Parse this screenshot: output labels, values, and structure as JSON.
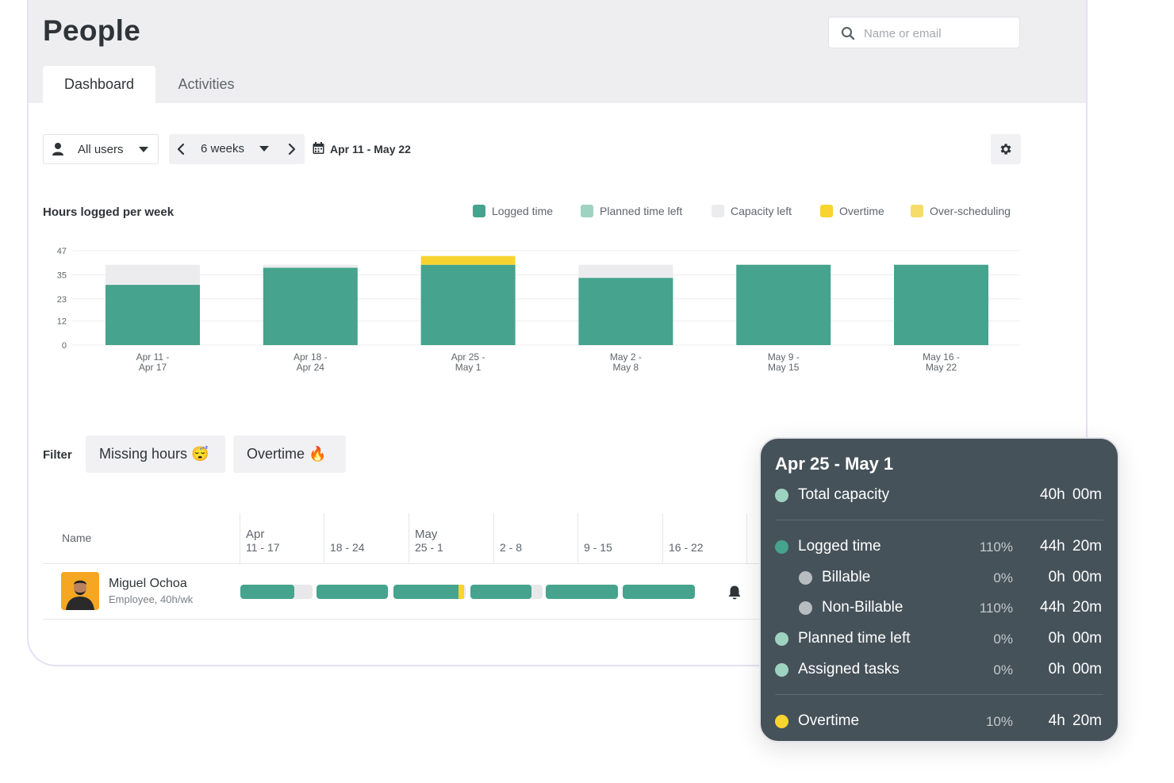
{
  "header": {
    "title": "People",
    "search_placeholder": "Name or email"
  },
  "tabs": [
    {
      "label": "Dashboard",
      "active": true
    },
    {
      "label": "Activities",
      "active": false
    }
  ],
  "toolbar": {
    "users_label": "All users",
    "weeks_label": "6 weeks",
    "date_range": "Apr 11 - May 22"
  },
  "chart": {
    "title": "Hours logged per week",
    "legend": [
      {
        "label": "Logged time",
        "color": "#46a38d"
      },
      {
        "label": "Planned time left",
        "color": "#9fd3c1"
      },
      {
        "label": "Capacity left",
        "color": "#ececef"
      },
      {
        "label": "Overtime",
        "color": "#f7d42f"
      },
      {
        "label": "Over-scheduling",
        "color": "#f6dc6b"
      }
    ]
  },
  "chart_data": {
    "type": "bar",
    "title": "Hours logged per week",
    "categories": [
      [
        "Apr 11 -",
        "Apr 17"
      ],
      [
        "Apr 18 -",
        "Apr 24"
      ],
      [
        "Apr 25 -",
        "May 1"
      ],
      [
        "May 2 -",
        "May 8"
      ],
      [
        "May 9 -",
        "May 15"
      ],
      [
        "May 16 -",
        "May 22"
      ]
    ],
    "y_ticks": [
      "47",
      "35",
      "23",
      "12",
      "0"
    ],
    "ylim": [
      0,
      47
    ],
    "series": [
      {
        "name": "Logged time",
        "values": [
          30,
          38.5,
          40,
          33.5,
          40,
          40
        ]
      },
      {
        "name": "Capacity left",
        "values": [
          10,
          1.5,
          0,
          6.5,
          0,
          0
        ]
      },
      {
        "name": "Overtime",
        "values": [
          0,
          0,
          4.33,
          0,
          0,
          0
        ]
      }
    ],
    "colors": {
      "logged": "#46a38d",
      "capacity": "#ececef",
      "overtime": "#f7d42f",
      "grid": "#ececef",
      "tick": "#5f656b"
    }
  },
  "filter": {
    "label": "Filter",
    "chips": [
      {
        "label": "Missing hours",
        "emoji": "😴"
      },
      {
        "label": "Overtime",
        "emoji": "🔥"
      }
    ]
  },
  "table": {
    "name_header": "Name",
    "columns": [
      {
        "month": "Apr",
        "days": "11 - 17"
      },
      {
        "month": "",
        "days": "18 - 24"
      },
      {
        "month": "May",
        "days": "25 - 1"
      },
      {
        "month": "",
        "days": "2 - 8"
      },
      {
        "month": "",
        "days": "9 - 15"
      },
      {
        "month": "",
        "days": "16 - 22"
      }
    ],
    "rows": [
      {
        "name": "Miguel Ochoa",
        "role": "Employee, 40h/wk",
        "week_fill": [
          0.75,
          1.0,
          0.98,
          0.85,
          1.0,
          1.0
        ],
        "week_overtime": [
          0,
          0,
          0.08,
          0,
          0,
          0
        ]
      }
    ]
  },
  "tooltip": {
    "title": "Apr 25 - May 1",
    "rows": [
      {
        "label": "Total capacity",
        "pct": "",
        "hours": "40h 00m",
        "color": "#9fd3c1",
        "indent": false
      },
      {
        "label": "Logged time",
        "pct": "110%",
        "hours": "44h 20m",
        "color": "#46a38d",
        "indent": false
      },
      {
        "label": "Billable",
        "pct": "0%",
        "hours": "0h 00m",
        "color": "#b7bcc0",
        "indent": true
      },
      {
        "label": "Non-Billable",
        "pct": "110%",
        "hours": "44h 20m",
        "color": "#b7bcc0",
        "indent": true
      },
      {
        "label": "Planned time left",
        "pct": "0%",
        "hours": "0h 00m",
        "color": "#9fd3c1",
        "indent": false
      },
      {
        "label": "Assigned tasks",
        "pct": "0%",
        "hours": "0h 00m",
        "color": "#9fd3c1",
        "indent": false
      },
      {
        "label": "Overtime",
        "pct": "10%",
        "hours": "4h 20m",
        "color": "#f7d42f",
        "indent": false
      }
    ]
  }
}
